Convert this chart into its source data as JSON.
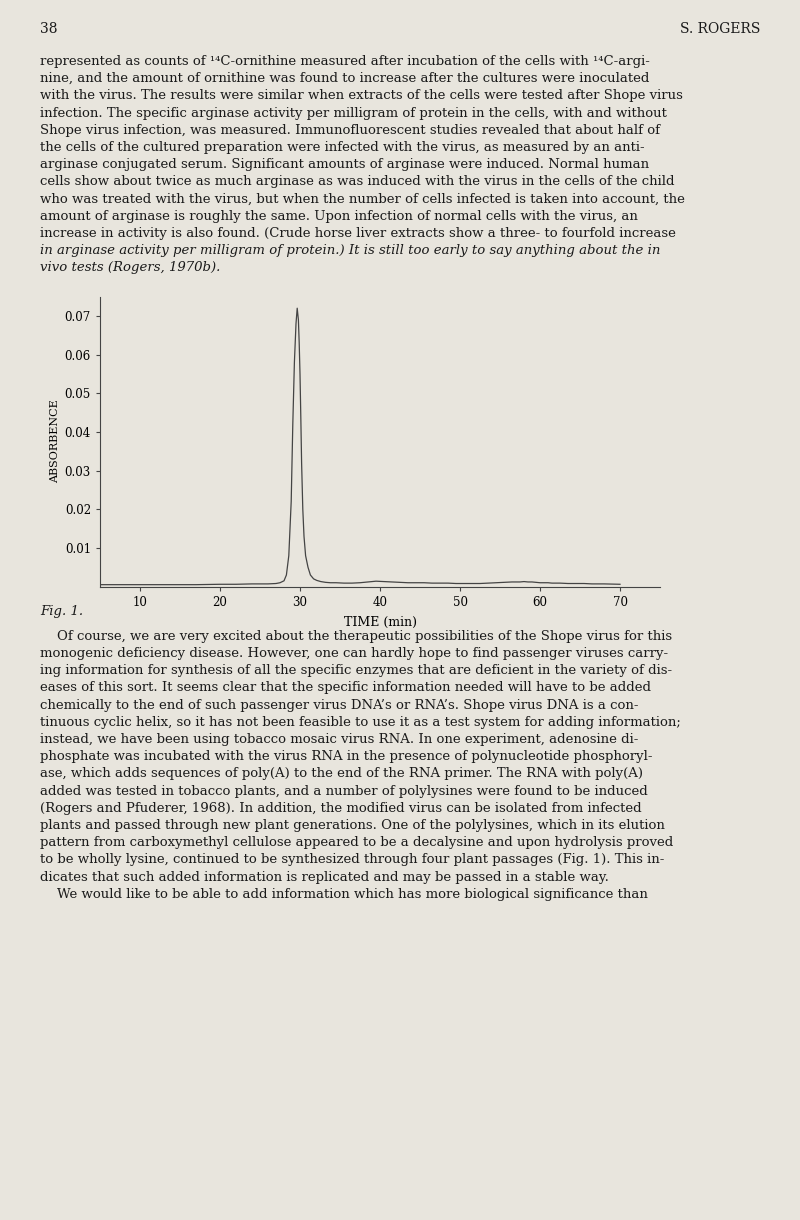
{
  "page_number": "38",
  "author": "S. ROGERS",
  "background_color": "#e8e5dd",
  "text_color": "#1a1a1a",
  "para1_text": "represented as counts of ¹⁴C-ornithine measured after incubation of the cells with ¹⁴C-argi-nine, and the amount of ornithine was found to increase after the cultures were inoculated with the virus. The results were similar when extracts of the cells were tested after Shope virus infection. The specific arginase activity per milligram of protein in the cells, with and without Shope virus infection, was measured. Immunofluorescent studies revealed that about half of the cells of the cultured preparation were infected with the virus, as measured by an anti-arginase conjugated serum. Significant amounts of arginase were induced. Normal human cells show about twice as much arginase as was induced with the virus in the cells of the child who was treated with the virus, but when the number of cells infected is taken into account, the amount of arginase is roughly the same. Upon infection of normal cells with the virus, an increase in activity is also found. (Crude horse liver extracts show a three- to fourfold increase in arginase activity per milligram of protein.) It is still too early to say anything about the in vivo tests (Rogers, 1970b).",
  "fig_caption": "Fig. 1.",
  "para2_text": "    Of course, we are very excited about the therapeutic possibilities of the Shope virus for this monogenic deficiency disease. However, one can hardly hope to find passenger viruses carry-ing information for synthesis of all the specific enzymes that are deficient in the variety of dis-eases of this sort. It seems clear that the specific information needed will have to be added chemically to the end of such passenger virus DNA’s or RNA’s. Shope virus DNA is a con-tinuous cyclic helix, so it has not been feasible to use it as a test system for adding information; instead, we have been using tobacco mosaic virus RNA. In one experiment, adenosine di-phosphate was incubated with the virus RNA in the presence of polynucleotide phosphoryl-ase, which adds sequences of poly(A) to the end of the RNA primer. The RNA with poly(A) added was tested in tobacco plants, and a number of polylysines were found to be induced (Rogers and Pfuderer, 1968). In addition, the modified virus can be isolated from infected plants and passed through new plant generations. One of the polylysines, which in its elution pattern from carboxymethyl cellulose appeared to be a decalysine and upon hydrolysis proved to be wholly lysine, continued to be synthesized through four plant passages (Fig. 1). This in-dicates that such added information is replicated and may be passed in a stable way. We would like to be able to add information which has more biological significance than",
  "plot": {
    "ylabel": "ABSORBENCE",
    "xlabel": "TIME (min)",
    "xlim": [
      5,
      75
    ],
    "ylim": [
      0,
      0.075
    ],
    "yticks": [
      0.01,
      0.02,
      0.03,
      0.04,
      0.05,
      0.06,
      0.07
    ],
    "ytick_labels": [
      "0.01",
      "0.02",
      "0.03",
      "0.04",
      "0.05",
      "0.06",
      "0.07"
    ],
    "xticks": [
      10,
      20,
      30,
      40,
      50,
      60,
      70
    ],
    "xtick_labels": [
      "10",
      "20",
      "30",
      "40",
      "50",
      "60",
      "70"
    ],
    "line_color": "#444444",
    "line_width": 0.9,
    "curve_x": [
      5,
      8,
      11,
      14,
      17,
      20,
      22,
      24,
      26,
      27,
      27.5,
      28,
      28.3,
      28.6,
      28.9,
      29.1,
      29.3,
      29.5,
      29.65,
      29.8,
      29.9,
      30.0,
      30.1,
      30.2,
      30.35,
      30.5,
      30.7,
      31.0,
      31.3,
      31.7,
      32.1,
      32.6,
      33.2,
      33.8,
      34.5,
      35.5,
      36.5,
      37.5,
      38.5,
      39.5,
      40.5,
      41.5,
      42.5,
      43.5,
      44.5,
      45.5,
      46.5,
      47.5,
      48.5,
      49.5,
      50.5,
      51.5,
      52.5,
      53.5,
      54.5,
      55.5,
      56.5,
      57.5,
      58.0,
      58.5,
      59.0,
      59.5,
      60.0,
      60.5,
      61.0,
      61.5,
      62.0,
      62.5,
      63.5,
      64.5,
      65.5,
      66.5,
      68.0,
      70.0
    ],
    "curve_y": [
      0.0005,
      0.0005,
      0.0005,
      0.0005,
      0.0005,
      0.0006,
      0.0006,
      0.0007,
      0.0007,
      0.0008,
      0.001,
      0.0015,
      0.003,
      0.008,
      0.022,
      0.042,
      0.058,
      0.068,
      0.072,
      0.069,
      0.063,
      0.055,
      0.044,
      0.032,
      0.02,
      0.013,
      0.008,
      0.005,
      0.003,
      0.002,
      0.0016,
      0.0013,
      0.0011,
      0.001,
      0.001,
      0.0009,
      0.0009,
      0.001,
      0.0012,
      0.0014,
      0.0013,
      0.0012,
      0.0011,
      0.001,
      0.001,
      0.001,
      0.0009,
      0.0009,
      0.0009,
      0.0008,
      0.0008,
      0.0008,
      0.0008,
      0.0009,
      0.001,
      0.0011,
      0.0012,
      0.0012,
      0.0013,
      0.0012,
      0.0012,
      0.0011,
      0.001,
      0.001,
      0.001,
      0.0009,
      0.0009,
      0.0009,
      0.0008,
      0.0008,
      0.0008,
      0.0007,
      0.0007,
      0.0006
    ]
  },
  "para1_lines": [
    "represented as counts of ¹⁴C-ornithine measured after incubation of the cells with ¹⁴C-argi-",
    "nine, and the amount of ornithine was found to increase after the cultures were inoculated",
    "with the virus. The results were similar when extracts of the cells were tested after Shope virus",
    "infection. The specific arginase activity per milligram of protein in the cells, with and without",
    "Shope virus infection, was measured. Immunofluorescent studies revealed that about half of",
    "the cells of the cultured preparation were infected with the virus, as measured by an anti-",
    "arginase conjugated serum. Significant amounts of arginase were induced. Normal human",
    "cells show about twice as much arginase as was induced with the virus in the cells of the child",
    "who was treated with the virus, but when the number of cells infected is taken into account, the",
    "amount of arginase is roughly the same. Upon infection of normal cells with the virus, an",
    "increase in activity is also found. (Crude horse liver extracts show a three- to fourfold increase",
    "in arginase activity per milligram of protein.) It is still too early to say anything about the in",
    "vivo tests (Rogers, 1970b)."
  ],
  "para2_lines": [
    "    Of course, we are very excited about the therapeutic possibilities of the Shope virus for this",
    "monogenic deficiency disease. However, one can hardly hope to find passenger viruses carry-",
    "ing information for synthesis of all the specific enzymes that are deficient in the variety of dis-",
    "eases of this sort. It seems clear that the specific information needed will have to be added",
    "chemically to the end of such passenger virus DNA’s or RNA’s. Shope virus DNA is a con-",
    "tinuous cyclic helix, so it has not been feasible to use it as a test system for adding information;",
    "instead, we have been using tobacco mosaic virus RNA. In one experiment, adenosine di-",
    "phosphate was incubated with the virus RNA in the presence of polynucleotide phosphoryl-",
    "ase, which adds sequences of poly(A) to the end of the RNA primer. The RNA with poly(A)",
    "added was tested in tobacco plants, and a number of polylysines were found to be induced",
    "(Rogers and Pfuderer, 1968). In addition, the modified virus can be isolated from infected",
    "plants and passed through new plant generations. One of the polylysines, which in its elution",
    "pattern from carboxymethyl cellulose appeared to be a decalysine and upon hydrolysis proved",
    "to be wholly lysine, continued to be synthesized through four plant passages (Fig. 1). This in-",
    "dicates that such added information is replicated and may be passed in a stable way.",
    "    We would like to be able to add information which has more biological significance than"
  ],
  "italic_lines_p1": [
    11,
    12
  ],
  "italic_lines_p2": []
}
